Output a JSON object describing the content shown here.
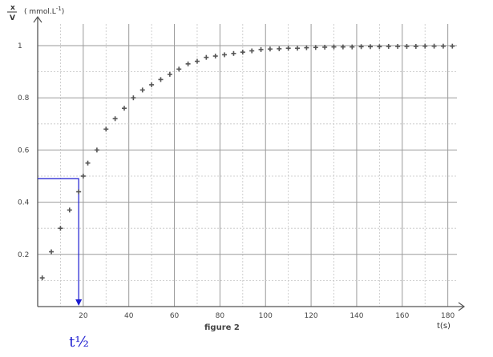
{
  "chart_data": {
    "type": "scatter",
    "caption": "figure 2",
    "xlabel": "t(s)",
    "ylabel_num": "x",
    "ylabel_den": "V",
    "ylabel_unit": "( mmol.L",
    "ylabel_exp": "-1",
    "ylabel_close": ")",
    "xlim": [
      0,
      184
    ],
    "ylim": [
      0,
      1.0
    ],
    "x_ticks": [
      20,
      40,
      60,
      80,
      100,
      120,
      140,
      160,
      180
    ],
    "y_ticks": [
      0.2,
      0.4,
      0.6,
      0.8,
      1
    ],
    "y_tick_labels": [
      "0.2",
      "0.4",
      "0.6",
      "0.8",
      "1"
    ],
    "x_minor_step": 10,
    "y_minor_step": 0.1,
    "grid": true,
    "series": [
      {
        "marker": "plus",
        "color": "#555555",
        "x": [
          2,
          6,
          10,
          14,
          18,
          20,
          22,
          26,
          30,
          34,
          38,
          42,
          46,
          50,
          54,
          58,
          62,
          66,
          70,
          74,
          78,
          82,
          86,
          90,
          94,
          98,
          102,
          106,
          110,
          114,
          118,
          122,
          126,
          130,
          134,
          138,
          142,
          146,
          150,
          154,
          158,
          162,
          166,
          170,
          174,
          178,
          182
        ],
        "y": [
          0.11,
          0.21,
          0.3,
          0.37,
          0.44,
          0.5,
          0.55,
          0.6,
          0.68,
          0.72,
          0.76,
          0.8,
          0.83,
          0.85,
          0.87,
          0.89,
          0.91,
          0.93,
          0.94,
          0.955,
          0.96,
          0.965,
          0.97,
          0.975,
          0.98,
          0.985,
          0.987,
          0.988,
          0.99,
          0.99,
          0.992,
          0.993,
          0.994,
          0.995,
          0.995,
          0.995,
          0.996,
          0.996,
          0.996,
          0.997,
          0.997,
          0.997,
          0.997,
          0.998,
          0.998,
          0.998,
          0.998
        ]
      }
    ],
    "annotation": {
      "label": "t½",
      "x": 18,
      "y": 0.49,
      "color": "#1a1ad0"
    }
  }
}
